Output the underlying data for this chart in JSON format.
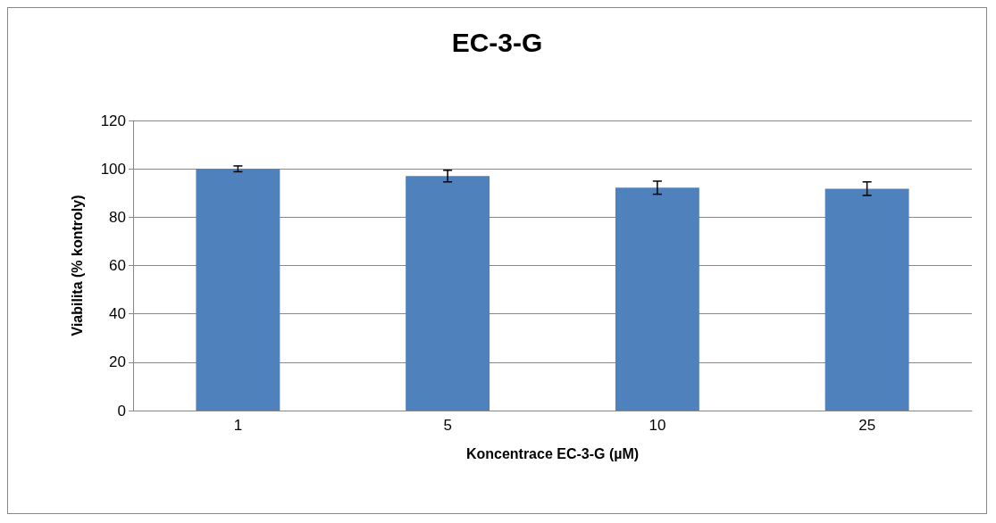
{
  "chart_data": {
    "type": "bar",
    "title": "EC-3-G",
    "xlabel": "Koncentrace EC-3-G (µM)",
    "ylabel": "Viabilita (% kontroly)",
    "categories": [
      "1",
      "5",
      "10",
      "25"
    ],
    "values": [
      100,
      97,
      92.2,
      91.8
    ],
    "errors": [
      1.2,
      2.4,
      2.7,
      2.8
    ],
    "color": "#4f81bd",
    "ylim": [
      0,
      120
    ],
    "yticks": [
      0,
      20,
      40,
      60,
      80,
      100,
      120
    ],
    "grid": "y"
  }
}
